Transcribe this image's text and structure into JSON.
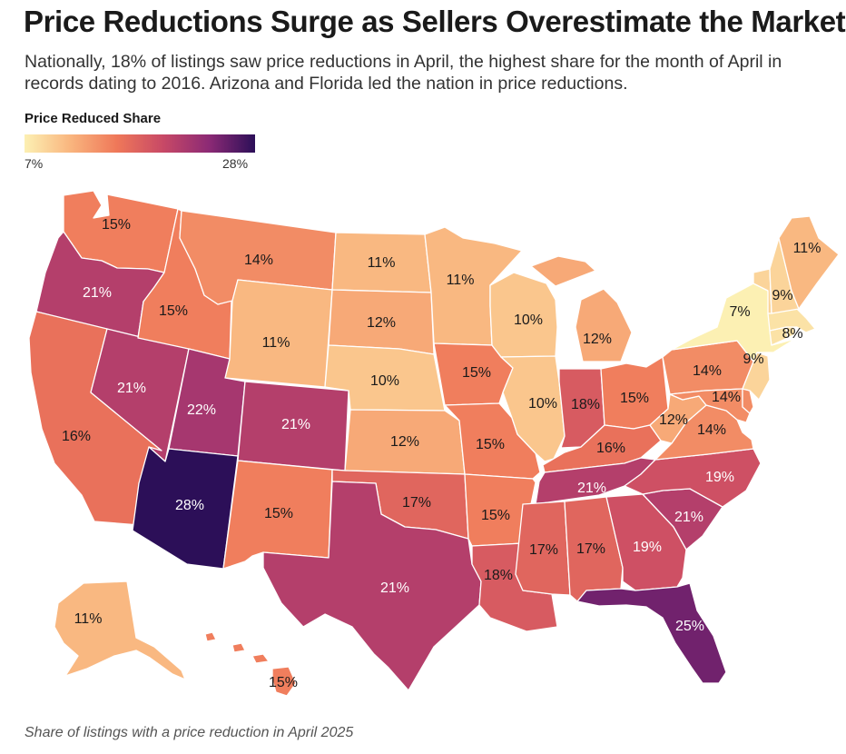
{
  "header": {
    "title": "Price Reductions Surge as Sellers Overestimate the Market",
    "subtitle": "Nationally, 18% of listings saw price reductions in April, the highest share for the month of April in records dating to 2016. Arizona and Florida led the nation in price reductions."
  },
  "legend": {
    "title": "Price Reduced Share",
    "min_label": "7%",
    "max_label": "28%",
    "min": 7,
    "max": 28,
    "colors": [
      "#fcf0b3",
      "#f9b57e",
      "#ef7859",
      "#c84966",
      "#8c2a75",
      "#2c0f58"
    ]
  },
  "footnote": "Share of listings with a price reduction in April 2025",
  "chart_data": {
    "type": "choropleth",
    "title": "Price Reductions Surge as Sellers Overestimate the Market",
    "metric": "Price Reduced Share (%)",
    "range": [
      7,
      28
    ],
    "states": [
      {
        "code": "WA",
        "value": 15,
        "label": "15%"
      },
      {
        "code": "OR",
        "value": 21,
        "label": "21%"
      },
      {
        "code": "CA",
        "value": 16,
        "label": "16%"
      },
      {
        "code": "NV",
        "value": 21,
        "label": "21%"
      },
      {
        "code": "ID",
        "value": 15,
        "label": "15%"
      },
      {
        "code": "MT",
        "value": 14,
        "label": "14%"
      },
      {
        "code": "WY",
        "value": 11,
        "label": "11%"
      },
      {
        "code": "UT",
        "value": 22,
        "label": "22%"
      },
      {
        "code": "AZ",
        "value": 28,
        "label": "28%"
      },
      {
        "code": "CO",
        "value": 21,
        "label": "21%"
      },
      {
        "code": "NM",
        "value": 15,
        "label": "15%"
      },
      {
        "code": "ND",
        "value": 11,
        "label": "11%"
      },
      {
        "code": "SD",
        "value": 12,
        "label": "12%"
      },
      {
        "code": "NE",
        "value": 10,
        "label": "10%"
      },
      {
        "code": "KS",
        "value": 12,
        "label": "12%"
      },
      {
        "code": "OK",
        "value": 17,
        "label": "17%"
      },
      {
        "code": "TX",
        "value": 21,
        "label": "21%"
      },
      {
        "code": "MN",
        "value": 11,
        "label": "11%"
      },
      {
        "code": "IA",
        "value": 15,
        "label": "15%"
      },
      {
        "code": "MO",
        "value": 15,
        "label": "15%"
      },
      {
        "code": "AR",
        "value": 15,
        "label": "15%"
      },
      {
        "code": "LA",
        "value": 18,
        "label": "18%"
      },
      {
        "code": "WI",
        "value": 10,
        "label": "10%"
      },
      {
        "code": "IL",
        "value": 10,
        "label": "10%"
      },
      {
        "code": "MI",
        "value": 12,
        "label": "12%"
      },
      {
        "code": "IN",
        "value": 18,
        "label": "18%"
      },
      {
        "code": "OH",
        "value": 15,
        "label": "15%"
      },
      {
        "code": "KY",
        "value": 16,
        "label": "16%"
      },
      {
        "code": "TN",
        "value": 21,
        "label": "21%"
      },
      {
        "code": "MS",
        "value": 17,
        "label": "17%"
      },
      {
        "code": "AL",
        "value": 17,
        "label": "17%"
      },
      {
        "code": "GA",
        "value": 19,
        "label": "19%"
      },
      {
        "code": "FL",
        "value": 25,
        "label": "25%"
      },
      {
        "code": "SC",
        "value": 21,
        "label": "21%"
      },
      {
        "code": "NC",
        "value": 19,
        "label": "19%"
      },
      {
        "code": "VA",
        "value": 14,
        "label": "14%"
      },
      {
        "code": "WV",
        "value": 12,
        "label": "12%"
      },
      {
        "code": "PA",
        "value": 14,
        "label": "14%"
      },
      {
        "code": "MD",
        "value": 14,
        "label": "14%"
      },
      {
        "code": "DE",
        "value": 14,
        "label": ""
      },
      {
        "code": "NJ",
        "value": 9,
        "label": "9%"
      },
      {
        "code": "NY",
        "value": 7,
        "label": "7%"
      },
      {
        "code": "CT",
        "value": 8,
        "label": ""
      },
      {
        "code": "RI",
        "value": 8,
        "label": ""
      },
      {
        "code": "MA",
        "value": 8,
        "label": "8%"
      },
      {
        "code": "VT",
        "value": 9,
        "label": ""
      },
      {
        "code": "NH",
        "value": 9,
        "label": "9%"
      },
      {
        "code": "ME",
        "value": 11,
        "label": "11%"
      },
      {
        "code": "AK",
        "value": 11,
        "label": "11%"
      },
      {
        "code": "HI",
        "value": 15,
        "label": "15%"
      }
    ]
  }
}
